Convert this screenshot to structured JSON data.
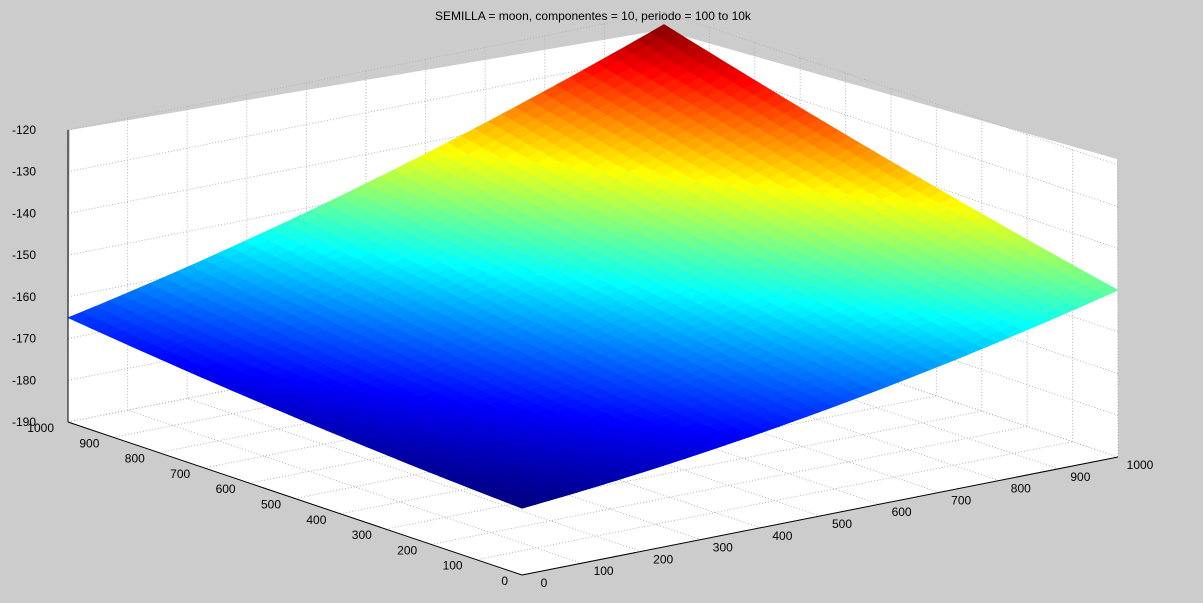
{
  "chart_data": {
    "type": "surface",
    "title": "SEMILLA = moon, componentes = 10, periodo = 100 to 10k",
    "xlabel": "",
    "ylabel": "",
    "zlabel": "",
    "x_ticks": [
      "0",
      "100",
      "200",
      "300",
      "400",
      "500",
      "600",
      "700",
      "800",
      "900",
      "1000"
    ],
    "y_ticks": [
      "0",
      "100",
      "200",
      "300",
      "400",
      "500",
      "600",
      "700",
      "800",
      "900",
      "1000"
    ],
    "z_ticks": [
      "-190",
      "-180",
      "-170",
      "-160",
      "-150",
      "-140",
      "-130",
      "-120"
    ],
    "xlim": [
      0,
      1000
    ],
    "ylim": [
      0,
      1000
    ],
    "zlim": [
      -190,
      -120
    ],
    "grid": true,
    "colormap": "jet",
    "corner_values": [
      {
        "x": 0,
        "y": 0,
        "z": -174
      },
      {
        "x": 1000,
        "y": 0,
        "z": -150
      },
      {
        "x": 0,
        "y": 1000,
        "z": -165
      },
      {
        "x": 1000,
        "y": 1000,
        "z": -123
      }
    ]
  },
  "colors": {
    "figure_background": "#cccccc",
    "axes_background": "#ffffff",
    "grid": "#b4b4b4"
  }
}
